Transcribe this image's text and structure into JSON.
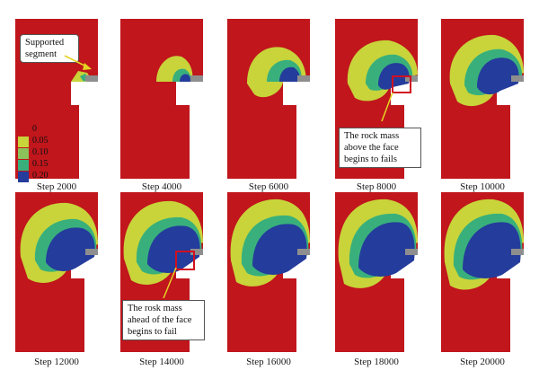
{
  "figure": {
    "colors": {
      "red": "#c0161c",
      "yellow": "#c8d43a",
      "green": "#39b07c",
      "blue": "#243c9c",
      "gray": "#8e8e8e",
      "highlight": "#d01020"
    },
    "legend": {
      "items": [
        {
          "label": "0",
          "color": "#c0161c"
        },
        {
          "label": "0.05",
          "color": "#c8d43a"
        },
        {
          "label": "0.10",
          "color": "#8cc25a"
        },
        {
          "label": "0.15",
          "color": "#39b07c"
        },
        {
          "label": "0.20",
          "color": "#243c9c"
        }
      ]
    },
    "panels": [
      {
        "label": "Step 2000"
      },
      {
        "label": "Step 4000"
      },
      {
        "label": "Step 6000"
      },
      {
        "label": "Step 8000"
      },
      {
        "label": "Step 10000"
      },
      {
        "label": "Step 12000"
      },
      {
        "label": "Step 14000"
      },
      {
        "label": "Step 16000"
      },
      {
        "label": "Step 18000"
      },
      {
        "label": "Step 20000"
      }
    ],
    "annotations": {
      "supported_segment": "Supported segment",
      "rock_mass_above": "The rock mass above the face begins to fails",
      "rosk_mass_ahead": "The rosk mass ahead of the face begins to fail"
    }
  }
}
